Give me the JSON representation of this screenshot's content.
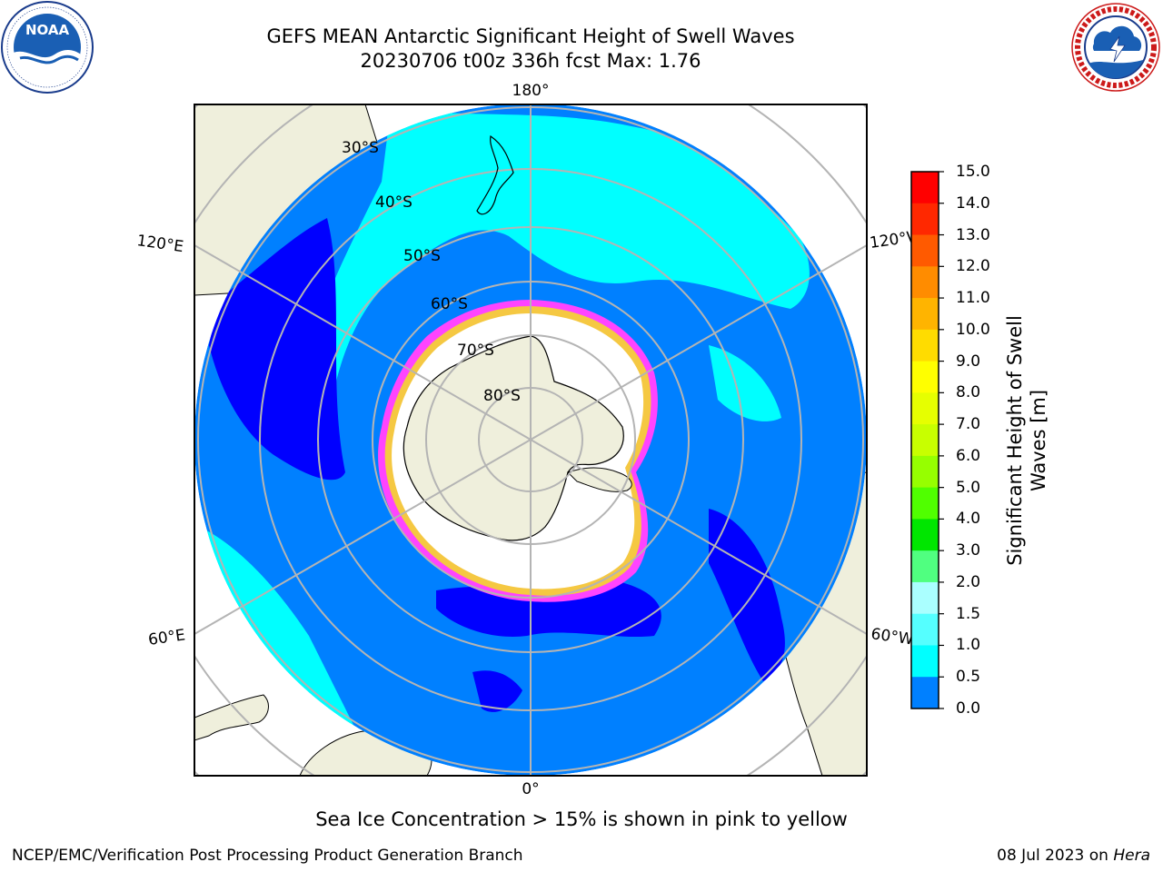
{
  "header": {
    "title_line1": "GEFS MEAN Antarctic Significant Height of Swell Waves",
    "title_line2": "20230706 t00z 336h fcst   Max: 1.76"
  },
  "logos": {
    "left": {
      "name": "noaa-logo",
      "text": "NOAA",
      "ring_text": "NATIONAL OCEANIC AND ATMOSPHERIC ADMINISTRATION · U.S. DEPARTMENT OF COMMERCE"
    },
    "right": {
      "name": "nws-logo",
      "ring_text": "NATIONAL WEATHER SERVICE"
    }
  },
  "map": {
    "projection": "south-polar-stereographic",
    "colors": {
      "land": "#efefdc",
      "ocean_low": "#0000ff",
      "ocean_mid": "#0080ff",
      "ocean_high": "#00ffff",
      "ocean_higher": "#99ffff",
      "ice_edge": "#ff44ff",
      "ice_yellow": "#f5c842",
      "sea_ice": "#ffffff",
      "grid": "#b4b4b4"
    },
    "latitude_labels": [
      "30°S",
      "40°S",
      "50°S",
      "60°S",
      "70°S",
      "80°S"
    ],
    "longitude_labels": {
      "top": "180°",
      "bottom": "0°",
      "upper_left": "120°E",
      "upper_right": "120°W",
      "lower_left": "60°E",
      "lower_right": "60°W"
    }
  },
  "colorbar": {
    "title_line1": "Significant Height of Swell",
    "title_line2": "Waves [m]",
    "ticks": [
      "15.0",
      "14.0",
      "13.0",
      "12.0",
      "11.0",
      "10.0",
      "9.0",
      "8.0",
      "7.0",
      "6.0",
      "5.0",
      "4.0",
      "3.0",
      "2.0",
      "1.5",
      "1.0",
      "0.5",
      "0.0"
    ],
    "colors": [
      "#ff0000",
      "#ff2800",
      "#ff5a00",
      "#ff8c00",
      "#ffb400",
      "#ffdc00",
      "#ffff00",
      "#e6ff00",
      "#c8ff00",
      "#96ff00",
      "#50ff00",
      "#00e600",
      "#50ff80",
      "#aaffff",
      "#55ffff",
      "#00ffff",
      "#0080ff",
      "#0000ff"
    ]
  },
  "footer": {
    "caption": "Sea Ice Concentration > 15% is shown in pink to yellow",
    "credit_left": "NCEP/EMC/Verification Post Processing Product Generation Branch",
    "credit_date": "08 Jul 2023 on ",
    "credit_machine": "Hera"
  }
}
